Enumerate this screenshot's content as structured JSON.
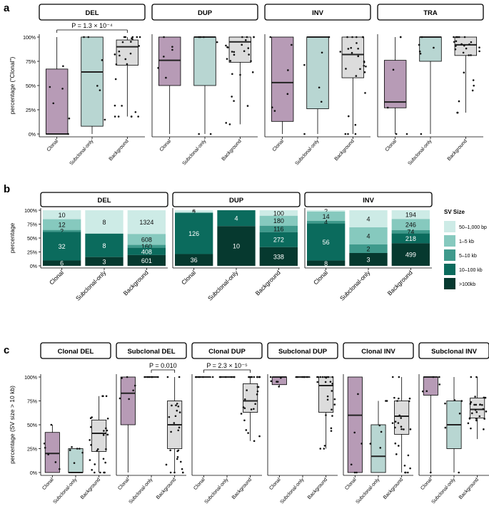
{
  "colors": {
    "clonal": "#b79bb6",
    "subclonal": "#b8d6d2",
    "background": "#dcdcdc",
    "sv_50_1000": "#cdebe6",
    "sv_1_5kb": "#86c9be",
    "sv_5_10kb": "#3f9a8c",
    "sv_10_100kb": "#0b6b5d",
    "sv_gt100kb": "#06392f"
  },
  "categories": [
    "Clonal",
    "Subclonal-only",
    "Background"
  ],
  "chart_data": [
    {
      "type": "box",
      "panel_label": "a",
      "ylabel": "percentage (\"Clonal\")",
      "yticks": [
        "0%",
        "25%",
        "50%",
        "75%",
        "100%"
      ],
      "ylim": [
        0,
        100
      ],
      "facets": [
        {
          "title": "DEL",
          "annotation": "P = 1.3 × 10⁻⁴",
          "pval_main": "P",
          "pval_rest": " = 1.3 × 10",
          "pval_exp": "−4",
          "boxes": [
            [
              0,
              0,
              0,
              67,
              100
            ],
            [
              0,
              8,
              64,
              100,
              100
            ],
            [
              18,
              71,
              90,
              97,
              100
            ]
          ]
        },
        {
          "title": "DUP",
          "annotation": "",
          "boxes": [
            [
              0,
              50,
              76,
              100,
              100
            ],
            [
              0,
              50,
              100,
              100,
              100
            ],
            [
              10,
              74,
              95,
              100,
              100
            ]
          ]
        },
        {
          "title": "INV",
          "annotation": "",
          "boxes": [
            [
              0,
              13,
              53,
              100,
              100
            ],
            [
              0,
              26,
              100,
              100,
              100
            ],
            [
              0,
              58,
              82,
              100,
              100
            ]
          ]
        },
        {
          "title": "TRA",
          "annotation": "",
          "boxes": [
            [
              0,
              27,
              33,
              76,
              100
            ],
            [
              0,
              75,
              100,
              100,
              100
            ],
            [
              22,
              81,
              92,
              100,
              100
            ]
          ]
        }
      ]
    },
    {
      "type": "stacked_bar",
      "panel_label": "b",
      "ylabel": "percentage",
      "yticks": [
        "0%",
        "25%",
        "50%",
        "75%",
        "100%"
      ],
      "legend_title": "SV Size",
      "legend_labels": [
        "50–1,000 bp",
        "1–5 kb",
        "5–10 kb",
        "10–100 kb",
        ">100kb"
      ],
      "facets": [
        {
          "title": "DEL",
          "bars": [
            {
              "counts": [
                10,
                12,
                2,
                32,
                6
              ]
            },
            {
              "counts": [
                8,
                0,
                0,
                8,
                3
              ]
            },
            {
              "counts": [
                1324,
                608,
                160,
                408,
                601
              ]
            }
          ]
        },
        {
          "title": "DUP",
          "bars": [
            {
              "counts": [
                6,
                2,
                0,
                126,
                36
              ]
            },
            {
              "counts": [
                0,
                0,
                0,
                4,
                10
              ]
            },
            {
              "counts": [
                100,
                180,
                116,
                272,
                338
              ]
            }
          ]
        },
        {
          "title": "INV",
          "bars": [
            {
              "counts": [
                2,
                14,
                4,
                56,
                8
              ]
            },
            {
              "counts": [
                4,
                4,
                2,
                0,
                3
              ]
            },
            {
              "counts": [
                194,
                246,
                74,
                218,
                499
              ]
            }
          ]
        }
      ]
    },
    {
      "type": "box",
      "panel_label": "c",
      "ylabel": "percentage (SV size > 10 kb)",
      "yticks": [
        "0%",
        "25%",
        "50%",
        "75%",
        "100%"
      ],
      "ylim": [
        0,
        100
      ],
      "facets": [
        {
          "title": "Clonal DEL",
          "annotation": "",
          "boxes": [
            [
              0,
              0,
              20,
              42,
              50
            ],
            [
              0,
              0,
              0,
              25,
              25
            ],
            [
              0,
              22,
              41,
              55,
              80
            ]
          ]
        },
        {
          "title": "Subclonal DEL",
          "annotation": "P = 0.010",
          "pval_main": "P",
          "pval_rest": " = 0.010",
          "pval_exp": "",
          "boxes": [
            [
              0,
              50,
              83,
              100,
              100
            ],
            [
              100,
              100,
              100,
              100,
              100
            ],
            [
              0,
              25,
              50,
              75,
              100
            ]
          ]
        },
        {
          "title": "Clonal DUP",
          "annotation": "P = 2.3 × 10⁻⁵",
          "pval_main": "P",
          "pval_rest": " = 2.3 × 10",
          "pval_exp": "−5",
          "boxes": [
            [
              100,
              100,
              100,
              100,
              100
            ],
            [
              100,
              100,
              100,
              100,
              100
            ],
            [
              33,
              63,
              75,
              93,
              100
            ]
          ]
        },
        {
          "title": "Subclonal DUP",
          "annotation": "",
          "boxes": [
            [
              90,
              92,
              100,
              100,
              100
            ],
            [
              100,
              100,
              100,
              100,
              100
            ],
            [
              25,
              63,
              91,
              100,
              100
            ]
          ]
        },
        {
          "title": "Clonal INV",
          "annotation": "",
          "boxes": [
            [
              0,
              0,
              60,
              100,
              100
            ],
            [
              0,
              0,
              17,
              50,
              75
            ],
            [
              0,
              40,
              59,
              75,
              100
            ]
          ]
        },
        {
          "title": "Subclonal INV",
          "annotation": "",
          "boxes": [
            [
              0,
              81,
              100,
              100,
              100
            ],
            [
              0,
              25,
              50,
              75,
              100
            ],
            [
              35,
              57,
              66,
              78,
              100
            ]
          ]
        }
      ]
    }
  ]
}
